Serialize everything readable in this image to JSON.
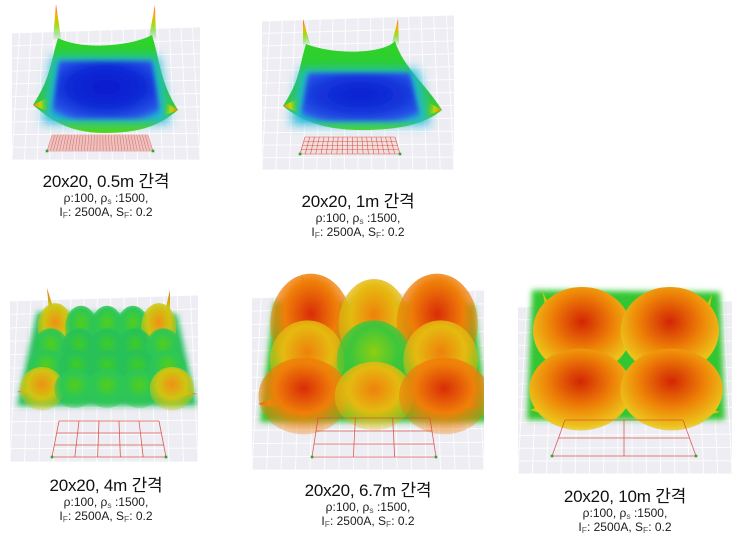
{
  "page": {
    "background": "#ffffff"
  },
  "chart_data": [
    {
      "type": "surface",
      "style": "basin",
      "caption": {
        "title": "20x20, 0.5m 간격",
        "line1": "ρ:100, ρ_s_ :1500,",
        "line2": "I_F_: 2500A, S_F_: 0.2"
      },
      "grid_size": "20x20",
      "spacing": "0.5m",
      "params": {
        "rho": "100",
        "rho_s": "1500",
        "I_F": "2500A",
        "S_F": "0.2"
      },
      "electrode_mesh": {
        "cols": 34,
        "rows": 8
      },
      "surface_description": "deep flat blue basin over the dense grid, green rim walls, sharp orange-red needle peaks at the four corners",
      "palette": {
        "wall_top": "#2ed426",
        "wall_mid": "#2cc73e",
        "wall_low": "#54d61a",
        "halo": "#1cb9d9",
        "floor_center": "#0a19cc",
        "floor_mid": "#0e2bd6",
        "floor_edge": "#2a58e8",
        "spike_tip": "#f2591a"
      }
    },
    {
      "type": "surface",
      "style": "basin",
      "caption": {
        "title": "20x20, 1m 간격",
        "line1": "ρ:100, ρ_s_ :1500,",
        "line2": "I_F_: 2500A, S_F_: 0.2"
      },
      "grid_size": "20x20",
      "spacing": "1m",
      "params": {
        "rho": "100",
        "rho_s": "1500",
        "I_F": "2500A",
        "S_F": "0.2"
      },
      "electrode_mesh": {
        "cols": 19,
        "rows": 4
      },
      "surface_description": "flat blue basin over a coarser grid, green rim walls, thin red-tipped corner peaks",
      "palette": {
        "wall_top": "#2ed426",
        "wall_mid": "#2cc73e",
        "wall_low": "#54d61a",
        "halo": "#1cb9d9",
        "floor_center": "#0c20d0",
        "floor_mid": "#1334da",
        "floor_edge": "#2a58e8",
        "spike_tip": "#f24c10"
      }
    },
    {
      "type": "surface",
      "style": "bumps",
      "caption": {
        "title": "20x20, 4m 간격",
        "line1": "ρ:100, ρ_s_ :1500,",
        "line2": "I_F_: 2500A, S_F_: 0.2"
      },
      "grid_size": "20x20",
      "spacing": "4m",
      "params": {
        "rho": "100",
        "rho_s": "1500",
        "I_F": "2500A",
        "S_F": "0.2"
      },
      "electrode_mesh": {
        "cols": 5,
        "rows": 3
      },
      "bumps": {
        "nx": 5,
        "ny": 4
      },
      "surface_description": "field of small green domes between conductors, teal valleys, orange shoulders and thin orange spikes at the corners",
      "palette": {
        "valley": "#2abf60",
        "corner": {
          "peak": "#ef9114",
          "mid": "#cfc511"
        },
        "edge": {
          "peak": "#52ce1c",
          "mid": "#2ec754"
        },
        "center": {
          "peak": "#3ecc26",
          "mid": "#28c158"
        },
        "spike": {
          "tip": "#f2680c",
          "mid": "#c8c012"
        }
      }
    },
    {
      "type": "surface",
      "style": "bumps",
      "caption": {
        "title": "20x20, 6.7m 간격",
        "line1": "ρ:100, ρ_s_ :1500,",
        "line2": "I_F_: 2500A, S_F_: 0.2"
      },
      "grid_size": "20x20",
      "spacing": "6.7m",
      "params": {
        "rho": "100",
        "rho_s": "1500",
        "I_F": "2500A",
        "S_F": "0.2"
      },
      "electrode_mesh": {
        "cols": 3,
        "rows": 3
      },
      "bumps": {
        "nx": 3,
        "ny": 3
      },
      "surface_description": "3x3 large domes, deep red corner peaks, orange edge domes, greener center dome, green valleys, small red corner needles",
      "palette": {
        "valley": "#35c32e",
        "corner": {
          "peak": "#d92d07",
          "mid": "#ef7f08"
        },
        "edge": {
          "peak": "#ee810c",
          "mid": "#e5ba10"
        },
        "center": {
          "peak": "#8ccf12",
          "mid": "#3cc63c"
        },
        "spike": {
          "tip": "#e04108",
          "mid": "#ef9b0a"
        }
      }
    },
    {
      "type": "surface",
      "style": "bumps",
      "caption": {
        "title": "20x20, 10m 간격",
        "line1": "ρ:100, ρ_s_ :1500,",
        "line2": "I_F_: 2500A, S_F_: 0.2"
      },
      "grid_size": "20x20",
      "spacing": "10m",
      "params": {
        "rho": "100",
        "rho_s": "1500",
        "I_F": "2500A",
        "S_F": "0.2"
      },
      "electrode_mesh": {
        "cols": 2,
        "rows": 2
      },
      "bumps": {
        "nx": 2,
        "ny": 2
      },
      "surface_description": "2x2 very large red-orange domes with yellow fringes, green cross-shaped valley between them, tiny yellow corner spikes",
      "palette": {
        "valley": "#33c633",
        "rim": "#ecc31a",
        "corner": {
          "peak": "#d32604",
          "mid": "#ee8307"
        },
        "edge": {
          "peak": "#d32604",
          "mid": "#ee8307"
        },
        "center": {
          "peak": "#d32604",
          "mid": "#ee8307"
        },
        "spike": {
          "tip": "#e8b50c",
          "mid": "#bfd60e"
        }
      }
    }
  ]
}
